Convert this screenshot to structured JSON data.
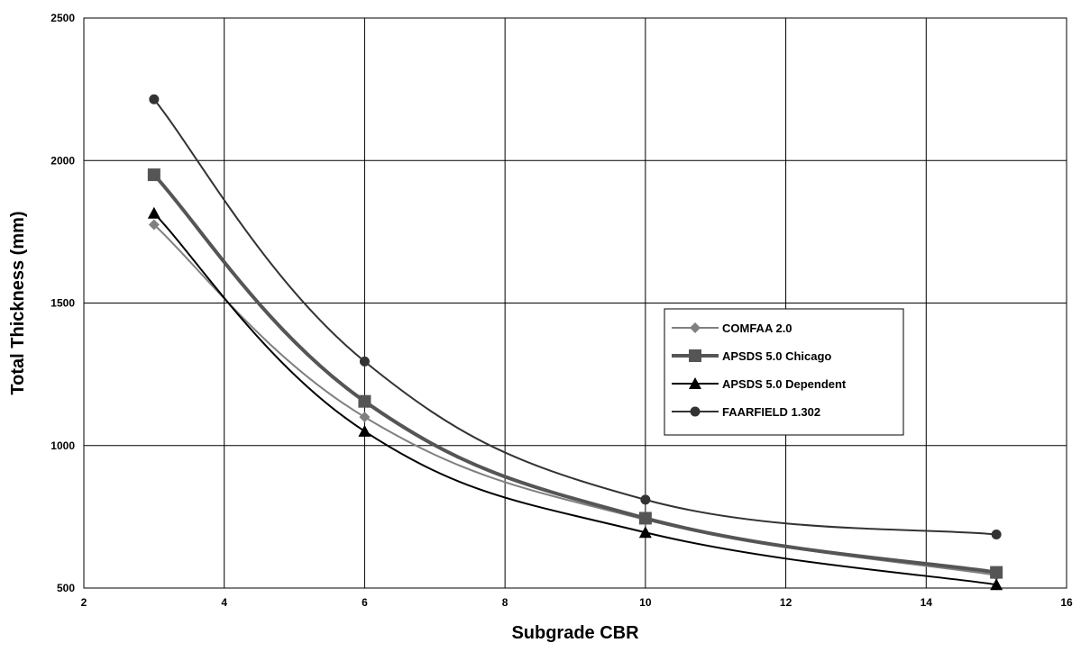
{
  "chart_data": {
    "type": "line",
    "title": "",
    "xlabel": "Subgrade CBR",
    "ylabel": "Total Thickness (mm)",
    "xlim": [
      2,
      16
    ],
    "ylim": [
      500,
      2500
    ],
    "xticks": [
      2,
      4,
      6,
      8,
      10,
      12,
      14,
      16
    ],
    "yticks": [
      500,
      1000,
      1500,
      2000,
      2500
    ],
    "grid": true,
    "legend_position": "right-center",
    "series": [
      {
        "name": "COMFAA 2.0",
        "x": [
          3,
          6,
          10,
          15
        ],
        "y": [
          1775,
          1100,
          740,
          545
        ],
        "color": "#808080",
        "marker": "diamond",
        "line_width": 2
      },
      {
        "name": "APSDS 5.0 Chicago",
        "x": [
          3,
          6,
          10,
          15
        ],
        "y": [
          1950,
          1155,
          745,
          555
        ],
        "color": "#555555",
        "marker": "square",
        "line_width": 4
      },
      {
        "name": "APSDS 5.0 Dependent",
        "x": [
          3,
          6,
          10,
          15
        ],
        "y": [
          1815,
          1050,
          695,
          512
        ],
        "color": "#000000",
        "marker": "triangle",
        "line_width": 2
      },
      {
        "name": "FAARFIELD 1.302",
        "x": [
          3,
          6,
          10,
          15
        ],
        "y": [
          2215,
          1295,
          810,
          688
        ],
        "color": "#333333",
        "marker": "circle",
        "line_width": 2
      }
    ]
  }
}
